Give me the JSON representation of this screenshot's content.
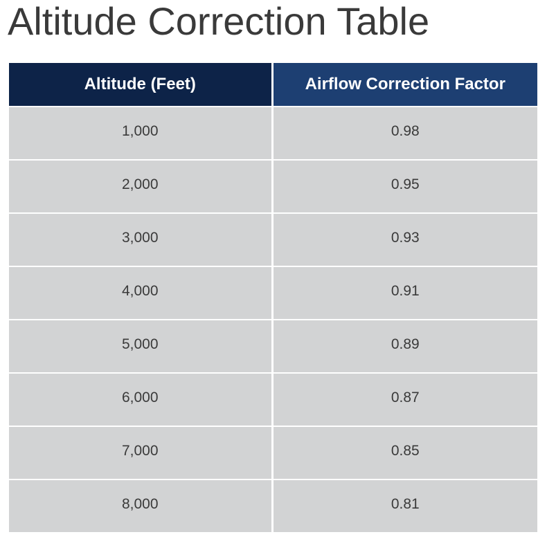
{
  "title": "Altitude Correction Table",
  "table": {
    "headers": [
      "Altitude (Feet)",
      "Airflow Correction Factor"
    ],
    "rows": [
      {
        "altitude": "1,000",
        "factor": "0.98"
      },
      {
        "altitude": "2,000",
        "factor": "0.95"
      },
      {
        "altitude": "3,000",
        "factor": "0.93"
      },
      {
        "altitude": "4,000",
        "factor": "0.91"
      },
      {
        "altitude": "5,000",
        "factor": "0.89"
      },
      {
        "altitude": "6,000",
        "factor": "0.87"
      },
      {
        "altitude": "7,000",
        "factor": "0.85"
      },
      {
        "altitude": "8,000",
        "factor": "0.81"
      }
    ]
  },
  "colors": {
    "header_left_bg": "#0d2348",
    "header_right_bg": "#1d3f72",
    "row_bg": "#d2d3d4",
    "text": "#3a3a3a"
  }
}
